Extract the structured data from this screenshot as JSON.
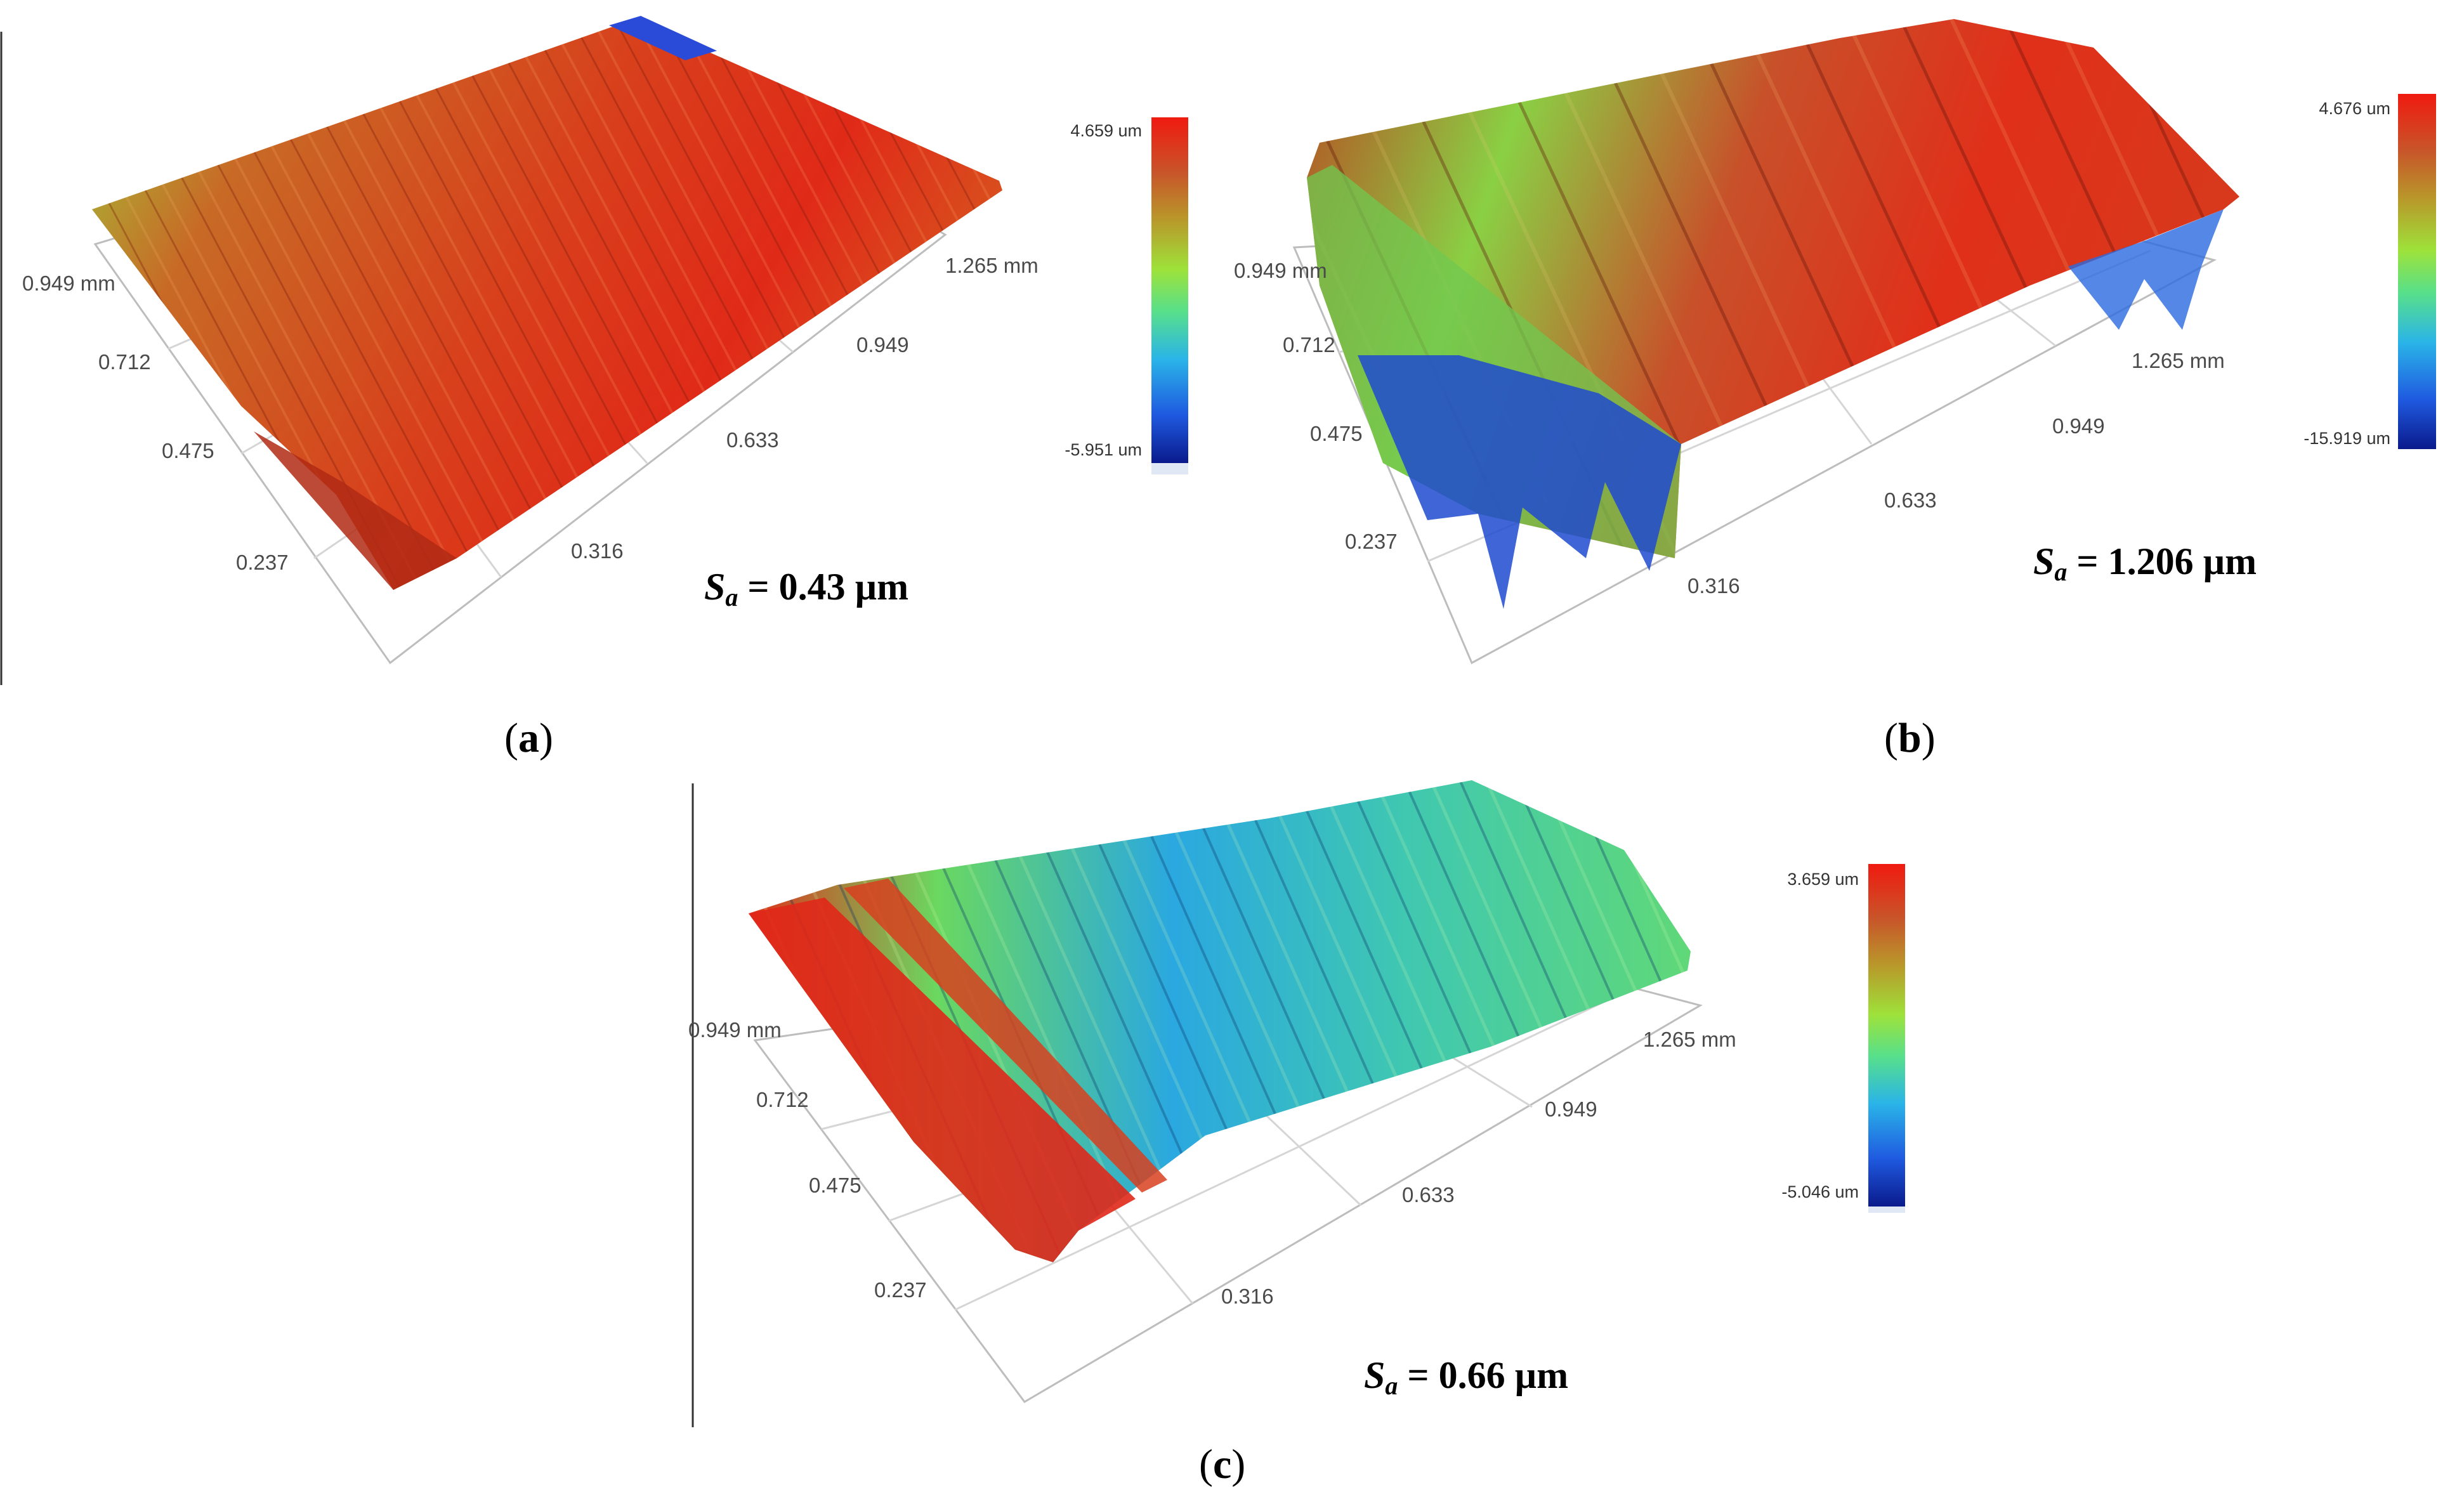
{
  "figure": {
    "panels": [
      {
        "id": "a",
        "tag_open": "(",
        "tag_letter": "a",
        "tag_close": ")",
        "x_ticks": [
          "0.237",
          "0.475",
          "0.712",
          "0.949 mm"
        ],
        "y_ticks": [
          "0.316",
          "0.633",
          "0.949",
          "1.265 mm"
        ],
        "colorbar": {
          "max_label": "4.659 um",
          "min_label": "-5.951 um"
        },
        "sa": {
          "symbol": "S",
          "subscript": "a",
          "equals": " = ",
          "value": "0.43 µm"
        }
      },
      {
        "id": "b",
        "tag_open": "(",
        "tag_letter": "b",
        "tag_close": ")",
        "x_ticks": [
          "0.237",
          "0.475",
          "0.712",
          "0.949 mm"
        ],
        "y_ticks": [
          "0.316",
          "0.633",
          "0.949",
          "1.265 mm"
        ],
        "colorbar": {
          "max_label": "4.676 um",
          "min_label": "-15.919 um"
        },
        "sa": {
          "symbol": "S",
          "subscript": "a",
          "equals": " = ",
          "value": "1.206 µm"
        }
      },
      {
        "id": "c",
        "tag_open": "(",
        "tag_letter": "c",
        "tag_close": ")",
        "x_ticks": [
          "0.237",
          "0.475",
          "0.712",
          "0.949 mm"
        ],
        "y_ticks": [
          "0.316",
          "0.633",
          "0.949",
          "1.265 mm"
        ],
        "colorbar": {
          "max_label": "3.659 um",
          "min_label": "-5.046 um"
        },
        "sa": {
          "symbol": "S",
          "subscript": "a",
          "equals": " = ",
          "value": "0.66 µm"
        }
      }
    ],
    "colormap": [
      "#0a1a8c",
      "#1f5ae0",
      "#2ab4e8",
      "#58e08a",
      "#9ee23a",
      "#b89a2a",
      "#c8552a",
      "#e8261c",
      "#f01a10"
    ]
  }
}
